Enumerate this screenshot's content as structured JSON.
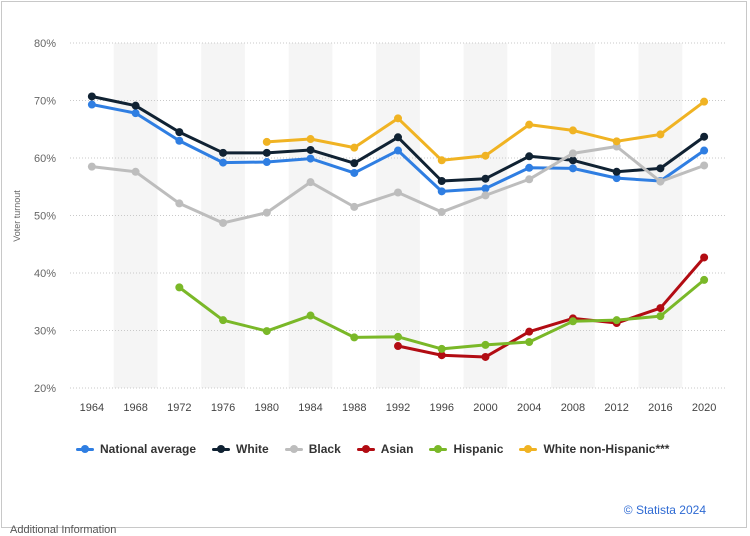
{
  "chart_data": {
    "type": "line",
    "title": "",
    "xlabel": "",
    "ylabel": "Voter turnout",
    "ylim": [
      20,
      80
    ],
    "yticks": [
      "20%",
      "30%",
      "40%",
      "50%",
      "60%",
      "70%",
      "80%"
    ],
    "ytick_values": [
      20,
      30,
      40,
      50,
      60,
      70,
      80
    ],
    "categories": [
      "1964",
      "1968",
      "1972",
      "1976",
      "1980",
      "1984",
      "1988",
      "1992",
      "1996",
      "2000",
      "2004",
      "2008",
      "2012",
      "2016",
      "2020"
    ],
    "grid": true,
    "legend_position": "bottom-left",
    "series": [
      {
        "name": "National average",
        "color": "#2f7ee2",
        "values": [
          69.3,
          67.8,
          63.0,
          59.2,
          59.3,
          59.9,
          57.4,
          61.3,
          54.2,
          54.7,
          58.3,
          58.2,
          56.5,
          56.0,
          61.3
        ]
      },
      {
        "name": "White",
        "color": "#102233",
        "values": [
          70.7,
          69.1,
          64.5,
          60.9,
          60.9,
          61.4,
          59.1,
          63.6,
          56.0,
          56.4,
          60.3,
          59.6,
          57.6,
          58.2,
          63.7
        ]
      },
      {
        "name": "Black",
        "color": "#bdbdbd",
        "values": [
          58.5,
          57.6,
          52.1,
          48.7,
          50.5,
          55.8,
          51.5,
          54.0,
          50.6,
          53.5,
          56.3,
          60.8,
          62.0,
          55.9,
          58.7
        ]
      },
      {
        "name": "Asian",
        "color": "#b20c13",
        "values": [
          null,
          null,
          null,
          null,
          null,
          null,
          null,
          27.3,
          25.7,
          25.4,
          29.8,
          32.1,
          31.3,
          33.9,
          42.7
        ]
      },
      {
        "name": "Hispanic",
        "color": "#7ab828",
        "values": [
          null,
          null,
          37.5,
          31.8,
          29.9,
          32.6,
          28.8,
          28.9,
          26.8,
          27.5,
          28.0,
          31.6,
          31.8,
          32.5,
          38.8
        ]
      },
      {
        "name": "White non-Hispanic***",
        "color": "#f0b323",
        "values": [
          null,
          null,
          null,
          null,
          62.8,
          63.3,
          61.8,
          66.9,
          59.6,
          60.4,
          65.8,
          64.8,
          62.9,
          64.1,
          69.8
        ]
      }
    ]
  },
  "credit": "© Statista 2024",
  "footer_text": "Additional Information"
}
